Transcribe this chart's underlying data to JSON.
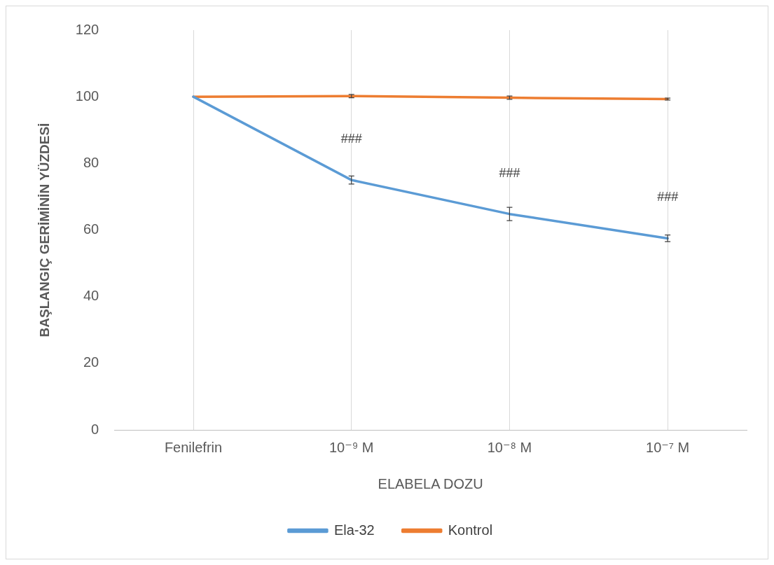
{
  "chart_data": {
    "type": "line",
    "xlabel": "ELABELA DOZU",
    "ylabel": "BAŞLANGIÇ GERİMİNİN YÜZDESİ",
    "categories": [
      "Fenilefrin",
      "10⁻⁹ M",
      "10⁻⁸ M",
      "10⁻⁷ M"
    ],
    "series": [
      {
        "name": "Ela-32",
        "color": "#5b9bd5",
        "values": [
          100,
          75,
          64.8,
          57.5
        ],
        "errors": [
          null,
          1.2,
          2,
          1
        ]
      },
      {
        "name": "Kontrol",
        "color": "#ed7d31",
        "values": [
          100,
          100.2,
          99.7,
          99.3
        ],
        "errors": [
          null,
          0.5,
          0.5,
          0.3
        ]
      }
    ],
    "ylim": [
      0,
      120
    ],
    "yticks": [
      0,
      20,
      40,
      60,
      80,
      100,
      120
    ],
    "grid": "x",
    "legend": "bottom",
    "line_style": "solid",
    "annotations": [
      {
        "text": "###",
        "x": "10⁻⁹ M",
        "y": 75
      },
      {
        "text": "###",
        "x": "10⁻⁸ M",
        "y": 64.8
      },
      {
        "text": "###",
        "x": "10⁻⁷ M",
        "y": 57.5
      }
    ]
  }
}
